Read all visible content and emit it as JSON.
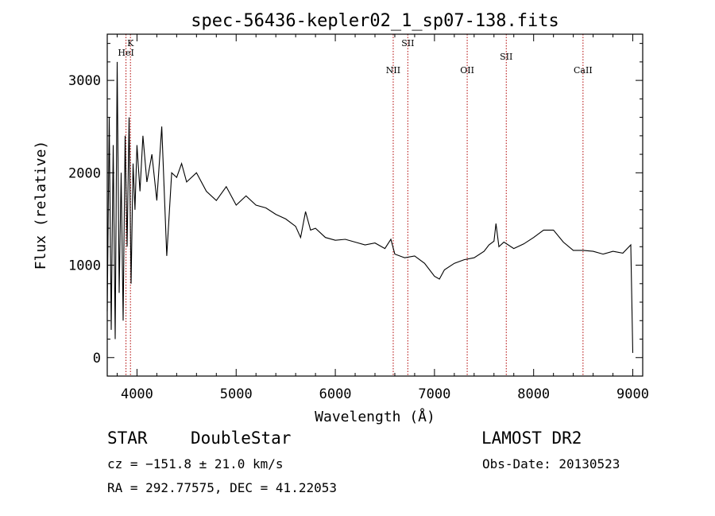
{
  "chart_data": {
    "type": "line",
    "title": "spec-56436-kepler02_1_sp07-138.fits",
    "xlabel": "Wavelength (Å)",
    "ylabel": "Flux (relative)",
    "xlim": [
      3700,
      9100
    ],
    "ylim": [
      -200,
      3500
    ],
    "x_ticks": [
      4000,
      5000,
      6000,
      7000,
      8000,
      9000
    ],
    "y_ticks": [
      0,
      1000,
      2000,
      3000
    ],
    "grid": false,
    "series": [
      {
        "x": [
          3700,
          3720,
          3740,
          3760,
          3780,
          3800,
          3820,
          3840,
          3860,
          3880,
          3900,
          3920,
          3940,
          3960,
          3980,
          4000,
          4030,
          4060,
          4100,
          4150,
          4200,
          4250,
          4300,
          4350,
          4400,
          4450,
          4500,
          4600,
          4700,
          4800,
          4900,
          5000,
          5100,
          5200,
          5300,
          5400,
          5500,
          5600,
          5650,
          5700,
          5750,
          5800,
          5900,
          6000,
          6100,
          6200,
          6300,
          6400,
          6500,
          6560,
          6600,
          6700,
          6800,
          6900,
          7000,
          7050,
          7100,
          7200,
          7300,
          7400,
          7500,
          7550,
          7600,
          7620,
          7650,
          7700,
          7800,
          7900,
          8000,
          8100,
          8200,
          8300,
          8400,
          8500,
          8600,
          8700,
          8800,
          8900,
          8980,
          9000
        ],
        "y": [
          500,
          2600,
          300,
          2300,
          200,
          3200,
          700,
          2000,
          400,
          2400,
          1200,
          2600,
          800,
          2100,
          1600,
          2300,
          1800,
          2400,
          1900,
          2200,
          1700,
          2500,
          1100,
          2000,
          1950,
          2100,
          1900,
          2000,
          1800,
          1700,
          1850,
          1650,
          1750,
          1650,
          1620,
          1550,
          1500,
          1420,
          1300,
          1580,
          1380,
          1400,
          1300,
          1270,
          1280,
          1250,
          1220,
          1240,
          1180,
          1280,
          1120,
          1080,
          1100,
          1020,
          880,
          850,
          950,
          1020,
          1060,
          1080,
          1150,
          1220,
          1260,
          1450,
          1200,
          1250,
          1180,
          1230,
          1300,
          1380,
          1380,
          1250,
          1160,
          1160,
          1150,
          1120,
          1150,
          1130,
          1220,
          50
        ]
      }
    ],
    "lines": [
      {
        "label": "HeI",
        "x": 3889
      },
      {
        "label": "K",
        "x": 3934
      },
      {
        "label": "NII",
        "x": 6584
      },
      {
        "label": "SII",
        "x": 6731
      },
      {
        "label": "OII",
        "x": 7330
      },
      {
        "label": "SII",
        "x": 7724
      },
      {
        "label": "CaII",
        "x": 8498
      }
    ]
  },
  "info": {
    "class": "STAR",
    "subclass": "DoubleStar",
    "survey": "LAMOST DR2",
    "cz": "cz = −151.8 ± 21.0 km/s",
    "obs_date": "Obs-Date: 20130523",
    "coords": "RA = 292.77575, DEC =  41.22053"
  }
}
